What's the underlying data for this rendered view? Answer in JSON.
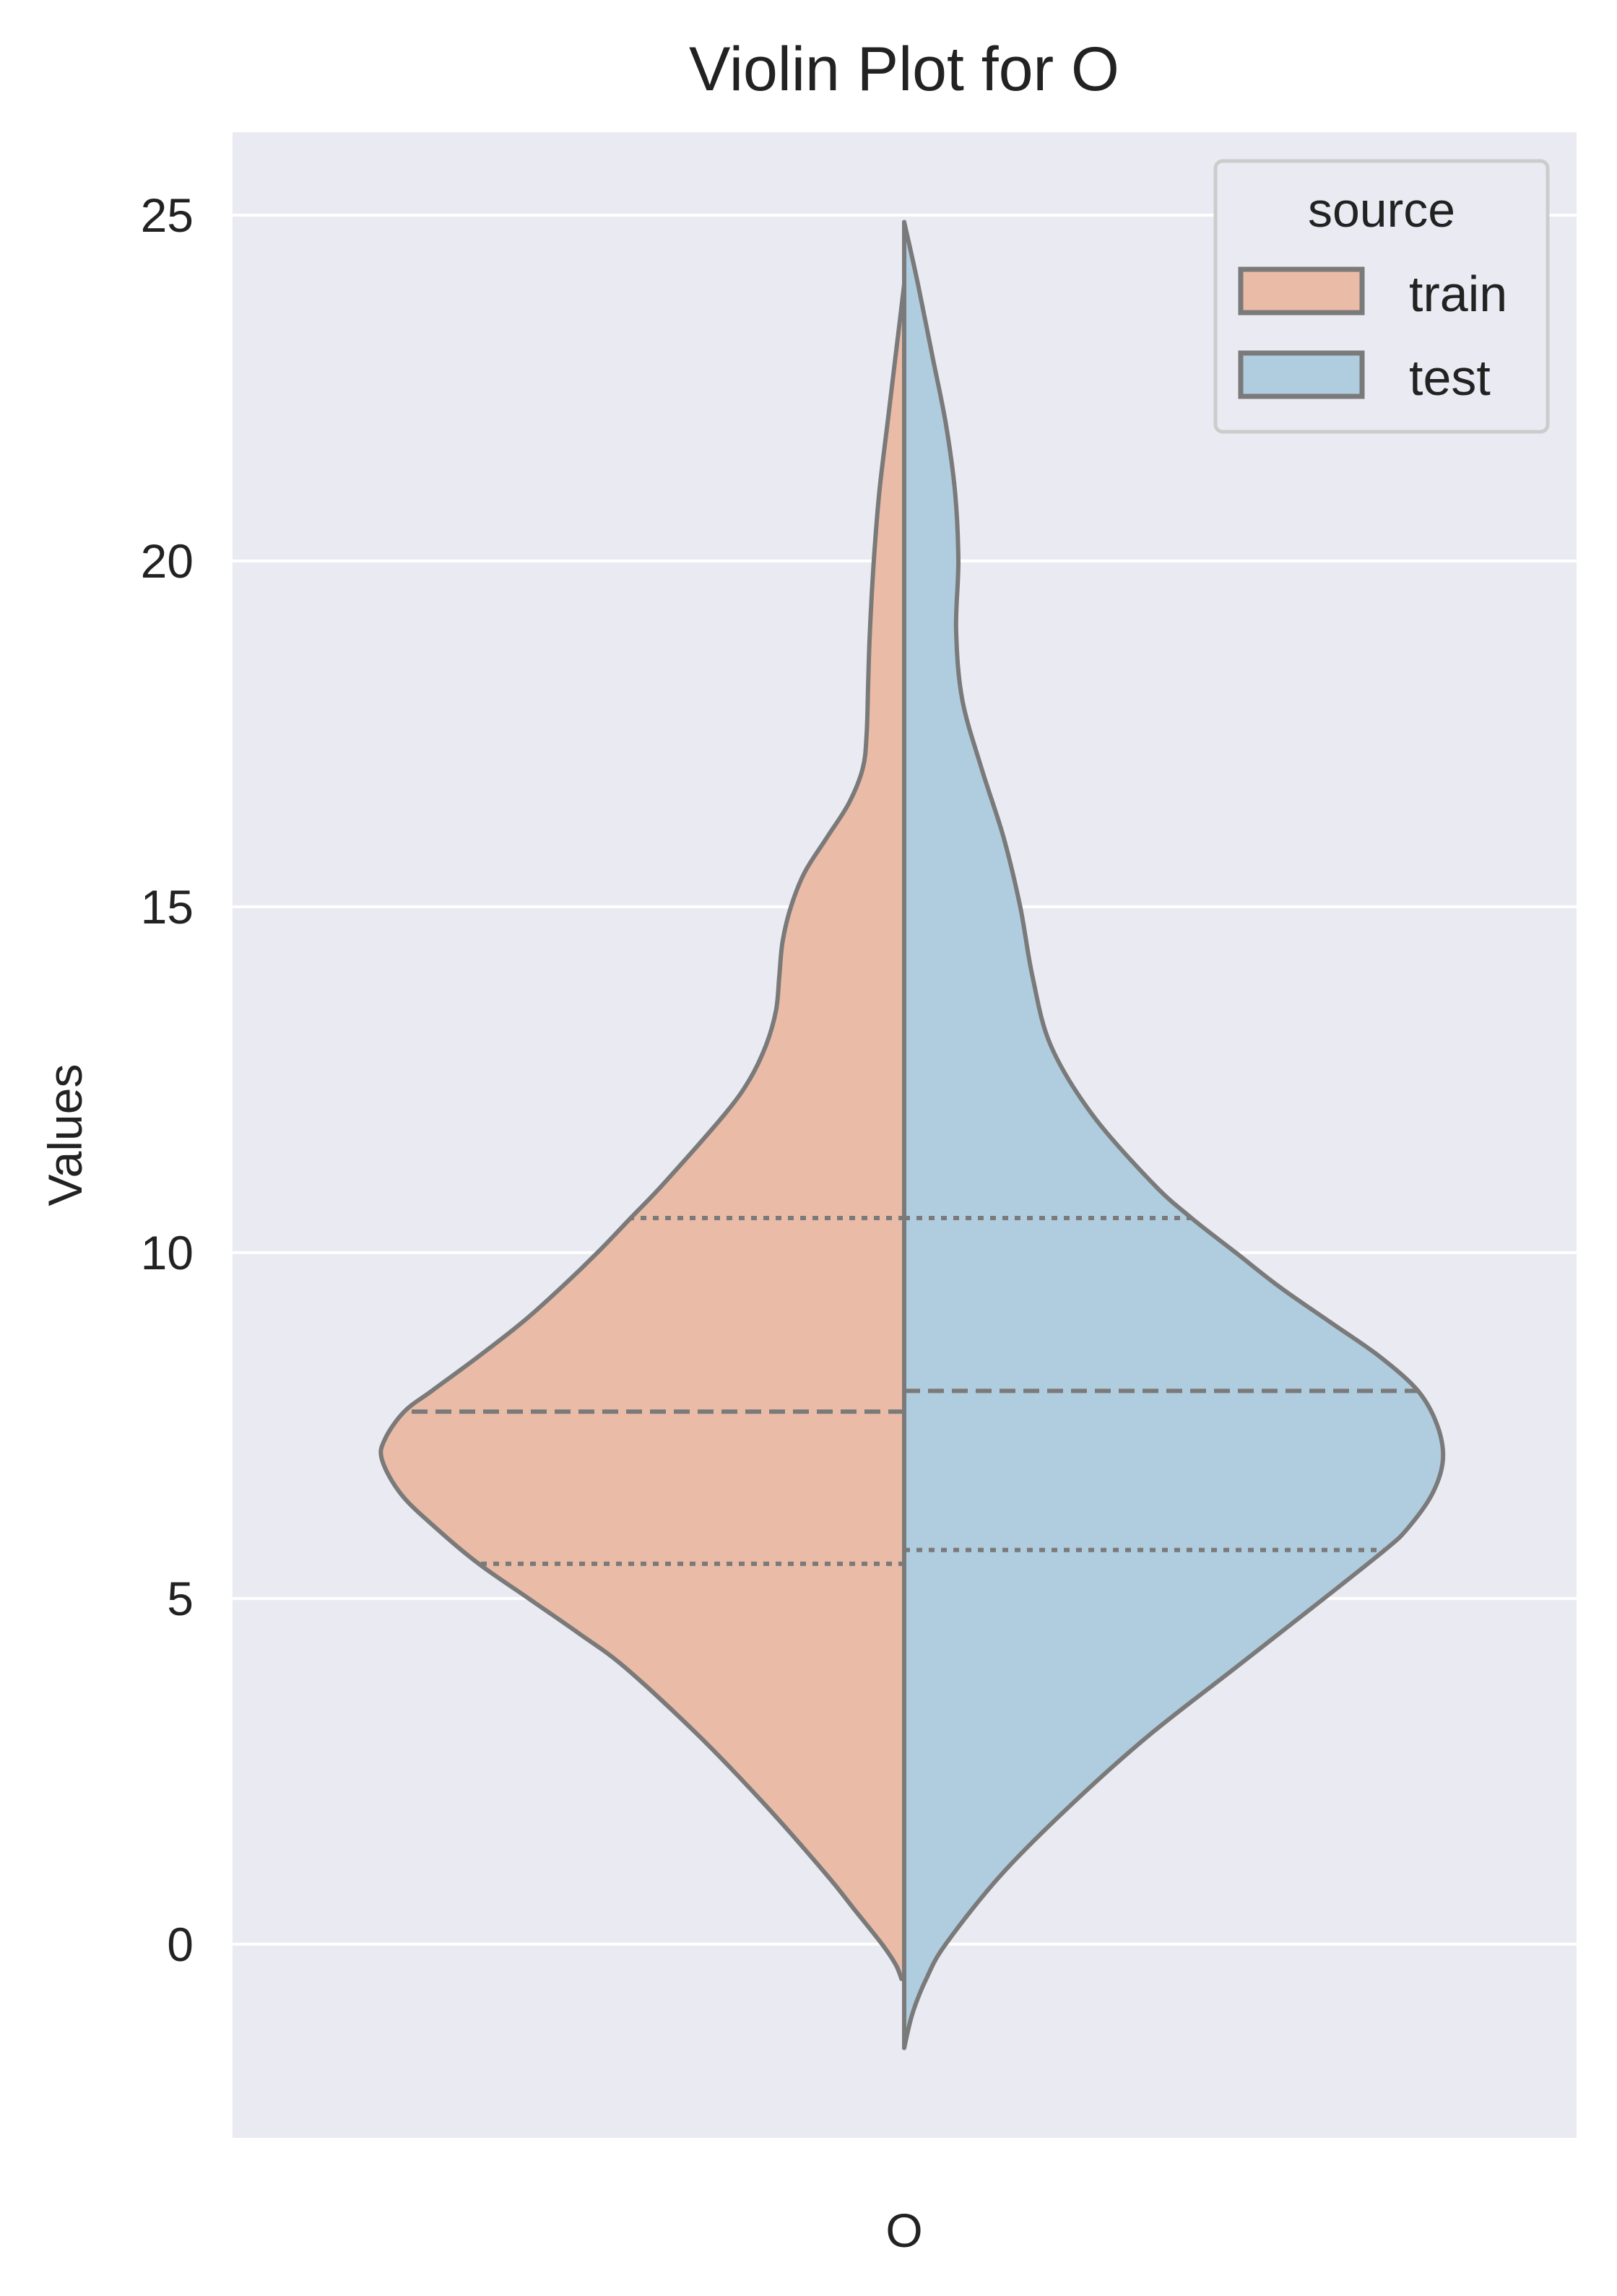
{
  "chart_data": {
    "type": "violin",
    "title": "Violin Plot for O",
    "xlabel": "",
    "ylabel": "Values",
    "categories": [
      "O"
    ],
    "ylim": [
      -2.8,
      26.2
    ],
    "yticks": [
      0,
      5,
      10,
      15,
      20,
      25
    ],
    "ytick_labels": [
      "0",
      "5",
      "10",
      "15",
      "20",
      "25"
    ],
    "grid": true,
    "legend": {
      "title": "source",
      "placement": "top-right",
      "entries": [
        {
          "label": "train",
          "color": "#eabba6"
        },
        {
          "label": "test",
          "color": "#b0cddf"
        }
      ]
    },
    "series": [
      {
        "name": "train",
        "side": "left",
        "color": "#eabba6",
        "range": [
          -0.5,
          24.0
        ],
        "quartiles": {
          "q1": 5.5,
          "median": 7.7,
          "q3": 10.5
        },
        "profile": [
          [
            24.0,
            0.0
          ],
          [
            23.0,
            0.015
          ],
          [
            22.0,
            0.03
          ],
          [
            21.0,
            0.045
          ],
          [
            20.0,
            0.055
          ],
          [
            19.0,
            0.062
          ],
          [
            18.3,
            0.065
          ],
          [
            17.5,
            0.068
          ],
          [
            17.0,
            0.075
          ],
          [
            16.5,
            0.1
          ],
          [
            16.0,
            0.14
          ],
          [
            15.5,
            0.18
          ],
          [
            15.0,
            0.205
          ],
          [
            14.5,
            0.22
          ],
          [
            14.0,
            0.226
          ],
          [
            13.5,
            0.232
          ],
          [
            13.0,
            0.25
          ],
          [
            12.5,
            0.28
          ],
          [
            12.0,
            0.325
          ],
          [
            11.0,
            0.435
          ],
          [
            10.5,
            0.495
          ],
          [
            10.0,
            0.555
          ],
          [
            9.5,
            0.62
          ],
          [
            9.0,
            0.69
          ],
          [
            8.5,
            0.77
          ],
          [
            8.0,
            0.855
          ],
          [
            7.7,
            0.905
          ],
          [
            7.3,
            0.94
          ],
          [
            7.0,
            0.945
          ],
          [
            6.5,
            0.91
          ],
          [
            6.0,
            0.845
          ],
          [
            5.5,
            0.77
          ],
          [
            5.0,
            0.68
          ],
          [
            4.5,
            0.59
          ],
          [
            4.0,
            0.505
          ],
          [
            3.0,
            0.37
          ],
          [
            2.0,
            0.25
          ],
          [
            1.0,
            0.14
          ],
          [
            0.5,
            0.09
          ],
          [
            0.0,
            0.04
          ],
          [
            -0.3,
            0.015
          ],
          [
            -0.5,
            0.005
          ]
        ]
      },
      {
        "name": "test",
        "side": "right",
        "color": "#b0cddf",
        "range": [
          -1.5,
          24.9
        ],
        "quartiles": {
          "q1": 5.7,
          "median": 8.0,
          "q3": 10.5
        },
        "profile": [
          [
            24.9,
            0.0
          ],
          [
            24.0,
            0.025
          ],
          [
            23.0,
            0.05
          ],
          [
            22.0,
            0.075
          ],
          [
            21.0,
            0.092
          ],
          [
            20.0,
            0.098
          ],
          [
            19.0,
            0.094
          ],
          [
            18.0,
            0.105
          ],
          [
            17.0,
            0.14
          ],
          [
            16.0,
            0.18
          ],
          [
            15.0,
            0.21
          ],
          [
            14.0,
            0.232
          ],
          [
            13.0,
            0.265
          ],
          [
            12.0,
            0.34
          ],
          [
            11.0,
            0.45
          ],
          [
            10.5,
            0.52
          ],
          [
            10.0,
            0.6
          ],
          [
            9.5,
            0.68
          ],
          [
            9.0,
            0.77
          ],
          [
            8.5,
            0.86
          ],
          [
            8.0,
            0.93
          ],
          [
            7.5,
            0.965
          ],
          [
            7.0,
            0.975
          ],
          [
            6.5,
            0.955
          ],
          [
            6.0,
            0.91
          ],
          [
            5.7,
            0.87
          ],
          [
            5.0,
            0.76
          ],
          [
            4.0,
            0.6
          ],
          [
            3.0,
            0.44
          ],
          [
            2.0,
            0.3
          ],
          [
            1.0,
            0.175
          ],
          [
            0.0,
            0.075
          ],
          [
            -0.5,
            0.04
          ],
          [
            -1.0,
            0.015
          ],
          [
            -1.5,
            0.0
          ]
        ]
      }
    ]
  }
}
